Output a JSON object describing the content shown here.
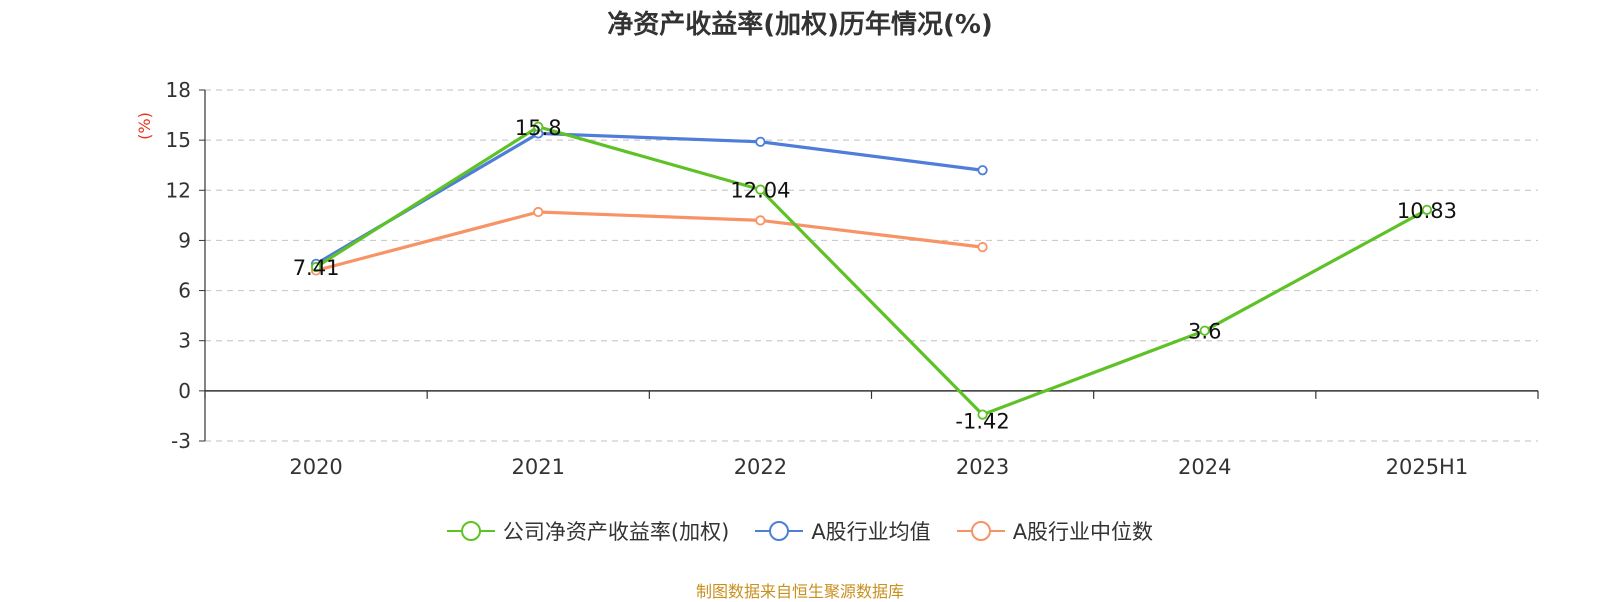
{
  "chart_data": {
    "type": "line",
    "title": "净资产收益率(加权)历年情况(%)",
    "ylabel": "(%)",
    "categories": [
      "2020",
      "2021",
      "2022",
      "2023",
      "2024",
      "2025H1"
    ],
    "ylim": [
      -3,
      18
    ],
    "yticks": [
      -3,
      0,
      3,
      6,
      9,
      12,
      15,
      18
    ],
    "grid": true,
    "legend_position": "bottom",
    "series": [
      {
        "name": "公司净资产收益率(加权)",
        "color": "#5ec226",
        "values": [
          7.41,
          15.8,
          12.04,
          -1.42,
          3.6,
          10.83
        ],
        "labels": [
          "7.41",
          "15.8",
          "12.04",
          "-1.42",
          "3.6",
          "10.83"
        ]
      },
      {
        "name": "A股行业均值",
        "color": "#4e7ed9",
        "values": [
          7.6,
          15.4,
          14.9,
          13.2,
          null,
          null
        ]
      },
      {
        "name": "A股行业中位数",
        "color": "#f79365",
        "values": [
          7.2,
          10.7,
          10.2,
          8.6,
          null,
          null
        ]
      }
    ]
  },
  "source_note": "制图数据来自恒生聚源数据库"
}
